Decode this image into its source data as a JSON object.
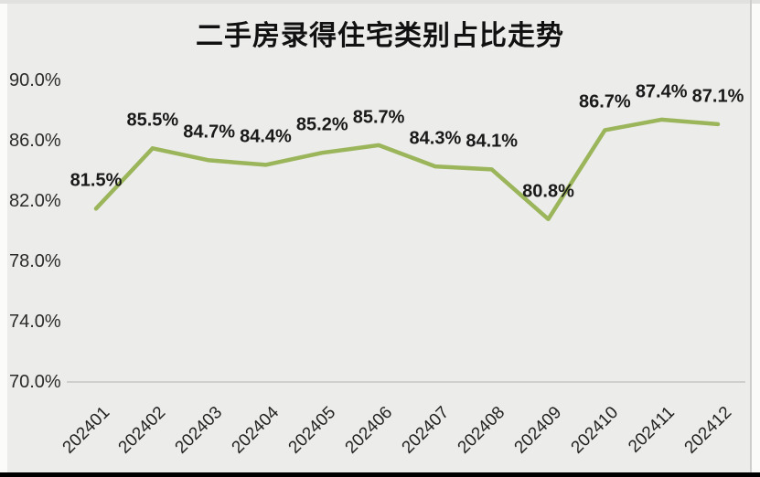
{
  "chart_data": {
    "type": "line",
    "title": "二手房录得住宅类别占比走势",
    "categories": [
      "202401",
      "202402",
      "202403",
      "202404",
      "202405",
      "202406",
      "202407",
      "202408",
      "202409",
      "202410",
      "202411",
      "202412"
    ],
    "values": [
      81.5,
      85.5,
      84.7,
      84.4,
      85.2,
      85.7,
      84.3,
      84.1,
      80.8,
      86.7,
      87.4,
      87.1
    ],
    "data_labels": [
      "81.5%",
      "85.5%",
      "84.7%",
      "84.4%",
      "85.2%",
      "85.7%",
      "84.3%",
      "84.1%",
      "80.8%",
      "86.7%",
      "87.4%",
      "87.1%"
    ],
    "y_ticks": [
      "90.0%",
      "86.0%",
      "82.0%",
      "78.0%",
      "74.0%",
      "70.0%"
    ],
    "ylim": [
      70,
      90
    ],
    "xlabel": "",
    "ylabel": "",
    "grid": false,
    "legend": "none",
    "line_color": "#9bb55a",
    "plot_background": "#ececea",
    "data_label_color": "#1a1a1a",
    "axis_line_color": "#cfcfcd"
  }
}
